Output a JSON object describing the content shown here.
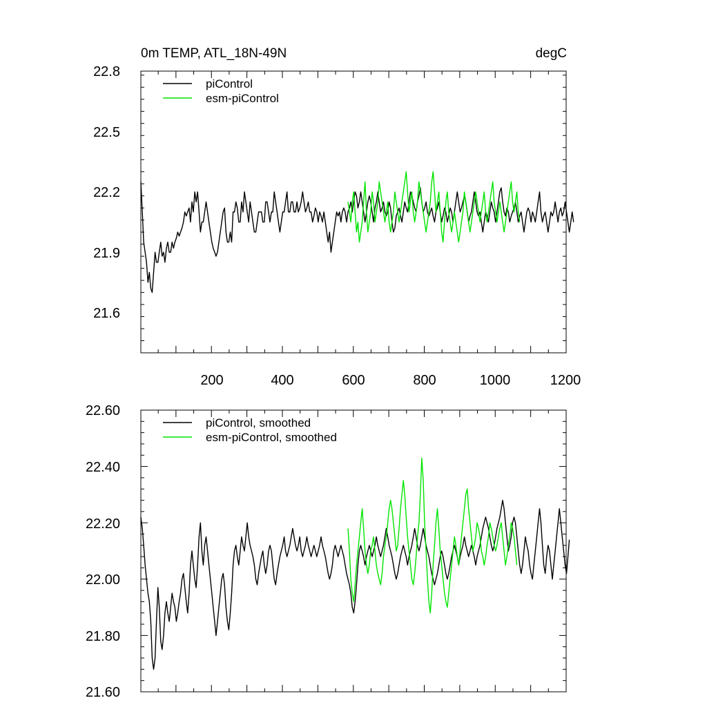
{
  "figure": {
    "title_left": "0m TEMP, ATL_18N-49N",
    "title_right": "degC"
  },
  "colors": {
    "piControl": "#000000",
    "esm_piControl": "#00e400"
  },
  "chart_data": [
    {
      "type": "line",
      "title": "0m TEMP, ATL_18N-49N",
      "units": "degC",
      "xlim": [
        1,
        1200
      ],
      "ylim": [
        21.4,
        22.8
      ],
      "x_ticks": [
        200,
        400,
        600,
        800,
        1000,
        1200
      ],
      "y_ticks": [
        "21.6",
        "21.9",
        "22.2",
        "22.5",
        "22.8"
      ],
      "legend": [
        "piControl",
        "esm-piControl"
      ],
      "series": [
        {
          "name": "piControl",
          "x_start": 1,
          "x_step": 4,
          "values": [
            22.25,
            22.1,
            21.95,
            21.9,
            21.85,
            21.75,
            21.8,
            21.72,
            21.7,
            21.8,
            21.9,
            21.85,
            21.85,
            21.9,
            21.95,
            21.88,
            21.9,
            21.85,
            21.92,
            21.95,
            21.9,
            21.9,
            21.95,
            21.92,
            21.95,
            21.97,
            22.0,
            21.98,
            22.0,
            22.02,
            22.05,
            22.1,
            22.08,
            22.1,
            22.12,
            22.05,
            22.15,
            22.1,
            22.2,
            22.15,
            22.2,
            22.1,
            22.0,
            22.05,
            22.05,
            22.1,
            22.15,
            22.1,
            22.05,
            22.0,
            21.95,
            21.92,
            21.9,
            21.88,
            21.9,
            21.95,
            22.0,
            22.05,
            22.1,
            22.12,
            22.0,
            21.95,
            21.95,
            22.0,
            21.95,
            22.1,
            22.1,
            22.15,
            22.12,
            22.05,
            22.05,
            22.15,
            22.1,
            22.2,
            22.15,
            22.1,
            22.05,
            22.15,
            22.1,
            22.05,
            22.0,
            22.0,
            22.05,
            22.1,
            22.1,
            22.1,
            22.05,
            22.05,
            22.15,
            22.15,
            22.1,
            22.05,
            22.1,
            22.1,
            22.2,
            22.15,
            22.1,
            22.05,
            22.0,
            22.05,
            22.1,
            22.1,
            22.15,
            22.2,
            22.1,
            22.1,
            22.15,
            22.15,
            22.1,
            22.1,
            22.15,
            22.1,
            22.12,
            22.15,
            22.2,
            22.15,
            22.1,
            22.12,
            22.15,
            22.1,
            22.1,
            22.05,
            22.08,
            22.12,
            22.1,
            22.05,
            22.1,
            22.08,
            22.05,
            22.1,
            22.05,
            22.0,
            21.95,
            22.0,
            21.9,
            21.95,
            22.0,
            22.05,
            22.1,
            22.08,
            22.1,
            22.05,
            22.1,
            22.12,
            22.1,
            22.05,
            22.1,
            22.12,
            22.15,
            22.1,
            22.15,
            22.2,
            22.18,
            22.12,
            22.15,
            22.2,
            22.15,
            22.1,
            22.05,
            22.1,
            22.15,
            22.18,
            22.15,
            22.1,
            22.05,
            22.12,
            22.15,
            22.2,
            22.15,
            22.1,
            22.12,
            22.15,
            22.1,
            22.08,
            22.1,
            22.15,
            22.12,
            22.05,
            22.0,
            22.02,
            22.08,
            22.1,
            22.12,
            22.08,
            22.05,
            22.1,
            22.15,
            22.12,
            22.1,
            22.15,
            22.2,
            22.18,
            22.15,
            22.12,
            22.1,
            22.15,
            22.18,
            22.22,
            22.15,
            22.1,
            22.12,
            22.15,
            22.1,
            22.08,
            22.1,
            22.12,
            22.08,
            22.05,
            22.1,
            22.12,
            22.15,
            22.1,
            22.05,
            22.08,
            22.12,
            22.1,
            22.05,
            22.08,
            22.12,
            22.1,
            22.05,
            22.1,
            22.15,
            22.2,
            22.15,
            22.1,
            22.12,
            22.15,
            22.18,
            22.15,
            22.1,
            22.05,
            22.08,
            22.1,
            22.15,
            22.2,
            22.15,
            22.1,
            22.08,
            22.1,
            22.05,
            22.0,
            22.05,
            22.1,
            22.08,
            22.05,
            22.1,
            22.15,
            22.12,
            22.1,
            22.05,
            22.1,
            22.15,
            22.2,
            22.22,
            22.15,
            22.1,
            22.08,
            22.12,
            22.1,
            22.05,
            22.08,
            22.1,
            22.12,
            22.15,
            22.1,
            22.05,
            22.08,
            22.1,
            22.05,
            22.0,
            22.05,
            22.1,
            22.12,
            22.1,
            22.05,
            22.1,
            22.08,
            22.05,
            22.1,
            22.15,
            22.2,
            22.1,
            22.05,
            22.08,
            22.1,
            22.05,
            22.0,
            22.05,
            22.1,
            22.08,
            22.1,
            22.15,
            22.1,
            22.05,
            22.1,
            22.12,
            22.08,
            22.1,
            22.15,
            22.1,
            22.05,
            22.0,
            22.05,
            22.1,
            22.05
          ]
        },
        {
          "name": "esm-piControl",
          "x_start": 585,
          "x_step": 4,
          "values": [
            22.15,
            22.1,
            22.05,
            22.15,
            22.2,
            22.1,
            22.0,
            22.05,
            21.95,
            22.0,
            22.05,
            22.15,
            22.25,
            22.1,
            22.0,
            22.05,
            22.1,
            22.2,
            22.15,
            22.05,
            22.1,
            22.15,
            22.25,
            22.2,
            22.15,
            22.1,
            22.05,
            22.1,
            22.15,
            22.05,
            22.0,
            22.05,
            22.1,
            22.2,
            22.15,
            22.1,
            22.05,
            22.1,
            22.15,
            22.2,
            22.25,
            22.3,
            22.2,
            22.1,
            22.15,
            22.2,
            22.1,
            22.05,
            22.1,
            22.15,
            22.25,
            22.2,
            22.15,
            22.1,
            22.05,
            22.0,
            22.05,
            22.1,
            22.15,
            22.25,
            22.3,
            22.2,
            22.1,
            22.15,
            22.2,
            22.1,
            22.0,
            21.95,
            22.05,
            22.15,
            22.2,
            22.1,
            22.05,
            22.0,
            22.05,
            22.1,
            22.05,
            22.0,
            21.95,
            22.0,
            22.05,
            22.1,
            22.2,
            22.15,
            22.1,
            22.05,
            22.0,
            22.05,
            22.1,
            22.15,
            22.2,
            22.15,
            22.1,
            22.05,
            22.1,
            22.15,
            22.2,
            22.1,
            22.05,
            22.1,
            22.15,
            22.2,
            22.25,
            22.15,
            22.1,
            22.05,
            22.1,
            22.15,
            22.1,
            22.05,
            22.0,
            22.05,
            22.1,
            22.15,
            22.2,
            22.25,
            22.15,
            22.1,
            22.15,
            22.2,
            22.1,
            22.05
          ]
        }
      ]
    },
    {
      "type": "line",
      "title": "",
      "xlim": [
        1,
        1200
      ],
      "ylim": [
        21.6,
        22.6
      ],
      "y_ticks": [
        "21.60",
        "21.80",
        "22.00",
        "22.20",
        "22.40",
        "22.60"
      ],
      "legend": [
        "piControl, smoothed",
        "esm-piControl, smoothed"
      ],
      "series": [
        {
          "name": "piControl, smoothed",
          "x_start": 1,
          "x_step": 4,
          "values": [
            22.22,
            22.18,
            22.12,
            22.05,
            22.0,
            21.95,
            21.92,
            21.85,
            21.72,
            21.68,
            21.72,
            21.85,
            21.97,
            21.9,
            21.78,
            21.75,
            21.8,
            21.88,
            21.92,
            21.88,
            21.85,
            21.9,
            21.95,
            21.92,
            21.9,
            21.85,
            21.88,
            21.92,
            21.95,
            22.0,
            22.02,
            21.97,
            21.92,
            21.88,
            21.95,
            22.05,
            22.1,
            22.05,
            22.0,
            21.97,
            22.05,
            22.15,
            22.2,
            22.1,
            22.05,
            22.12,
            22.15,
            22.1,
            22.05,
            22.0,
            21.95,
            21.9,
            21.85,
            21.8,
            21.85,
            21.9,
            21.95,
            22.0,
            22.02,
            21.98,
            21.9,
            21.85,
            21.82,
            21.88,
            21.95,
            22.05,
            22.1,
            22.12,
            22.08,
            22.05,
            22.1,
            22.15,
            22.12,
            22.1,
            22.15,
            22.2,
            22.15,
            22.12,
            22.1,
            22.08,
            22.05,
            22.0,
            21.98,
            22.02,
            22.05,
            22.08,
            22.1,
            22.05,
            22.02,
            22.05,
            22.1,
            22.12,
            22.1,
            22.05,
            22.0,
            21.98,
            22.02,
            22.05,
            22.08,
            22.1,
            22.12,
            22.15,
            22.1,
            22.08,
            22.1,
            22.12,
            22.15,
            22.18,
            22.15,
            22.12,
            22.1,
            22.12,
            22.15,
            22.1,
            22.08,
            22.1,
            22.12,
            22.15,
            22.12,
            22.1,
            22.08,
            22.1,
            22.12,
            22.1,
            22.08,
            22.1,
            22.12,
            22.15,
            22.12,
            22.1,
            22.08,
            22.05,
            22.02,
            22.0,
            22.02,
            22.05,
            22.1,
            22.12,
            22.1,
            22.08,
            22.1,
            22.12,
            22.1,
            22.08,
            22.05,
            22.02,
            22.0,
            21.98,
            21.95,
            21.9,
            21.88,
            21.92,
            21.98,
            22.05,
            22.1,
            22.12,
            22.1,
            22.08,
            22.05,
            22.08,
            22.1,
            22.12,
            22.1,
            22.08,
            22.1,
            22.12,
            22.15,
            22.12,
            22.1,
            22.08,
            22.1,
            22.12,
            22.15,
            22.18,
            22.15,
            22.12,
            22.1,
            22.08,
            22.05,
            22.02,
            22.0,
            22.02,
            22.05,
            22.08,
            22.1,
            22.12,
            22.1,
            22.08,
            22.05,
            22.08,
            22.1,
            22.12,
            22.15,
            22.18,
            22.15,
            22.12,
            22.1,
            22.12,
            22.15,
            22.18,
            22.15,
            22.12,
            22.1,
            22.08,
            22.05,
            22.02,
            22.0,
            21.98,
            22.0,
            22.02,
            22.05,
            22.08,
            22.1,
            22.08,
            22.05,
            22.02,
            22.0,
            22.02,
            22.05,
            22.08,
            22.1,
            22.12,
            22.1,
            22.08,
            22.05,
            22.08,
            22.1,
            22.12,
            22.15,
            22.12,
            22.1,
            22.08,
            22.1,
            22.12,
            22.1,
            22.08,
            22.05,
            22.08,
            22.1,
            22.12,
            22.15,
            22.18,
            22.2,
            22.22,
            22.2,
            22.18,
            22.15,
            22.12,
            22.1,
            22.12,
            22.15,
            22.18,
            22.2,
            22.22,
            22.25,
            22.28,
            22.25,
            22.2,
            22.15,
            22.1,
            22.12,
            22.15,
            22.2,
            22.22,
            22.2,
            22.15,
            22.1,
            22.05,
            22.02,
            22.05,
            22.1,
            22.15,
            22.12,
            22.1,
            22.05,
            22.02,
            22.0,
            22.05,
            22.1,
            22.15,
            22.2,
            22.25,
            22.2,
            22.12,
            22.05,
            22.02,
            22.08,
            22.12,
            22.1,
            22.05,
            22.0,
            22.05,
            22.1,
            22.15,
            22.2,
            22.25,
            22.2,
            22.15,
            22.1,
            22.05,
            22.02,
            22.08,
            22.14
          ]
        },
        {
          "name": "esm-piControl, smoothed",
          "x_start": 585,
          "x_step": 4,
          "values": [
            22.18,
            22.1,
            22.0,
            21.95,
            21.92,
            21.98,
            22.05,
            22.1,
            22.15,
            22.2,
            22.25,
            22.18,
            22.1,
            22.05,
            22.02,
            22.05,
            22.1,
            22.12,
            22.15,
            22.1,
            22.05,
            22.02,
            22.0,
            21.98,
            22.02,
            22.08,
            22.12,
            22.15,
            22.2,
            22.25,
            22.28,
            22.25,
            22.2,
            22.15,
            22.1,
            22.12,
            22.18,
            22.25,
            22.3,
            22.35,
            22.3,
            22.22,
            22.15,
            22.1,
            22.05,
            22.0,
            21.98,
            22.02,
            22.08,
            22.15,
            22.2,
            22.3,
            22.43,
            22.35,
            22.2,
            22.1,
            22.0,
            21.92,
            21.88,
            21.95,
            22.05,
            22.12,
            22.2,
            22.25,
            22.18,
            22.1,
            22.05,
            22.0,
            21.95,
            21.92,
            21.9,
            21.95,
            22.0,
            22.05,
            22.1,
            22.15,
            22.12,
            22.08,
            22.05,
            22.1,
            22.15,
            22.2,
            22.25,
            22.3,
            22.32,
            22.25,
            22.2,
            22.15,
            22.1,
            22.12,
            22.15,
            22.2,
            22.18,
            22.15,
            22.1,
            22.08,
            22.05,
            22.08,
            22.12,
            22.15,
            22.2,
            22.18,
            22.15,
            22.12,
            22.1,
            22.12,
            22.15,
            22.18,
            22.2,
            22.15,
            22.1,
            22.05,
            22.08,
            22.12,
            22.15,
            22.2,
            22.18,
            22.15,
            22.1,
            22.05
          ]
        }
      ]
    }
  ]
}
